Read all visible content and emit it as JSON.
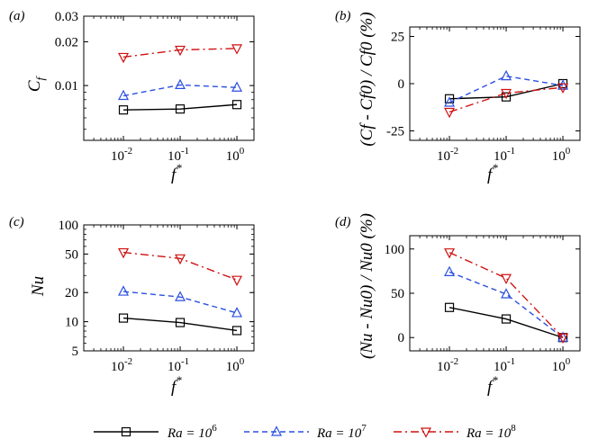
{
  "legend": {
    "entries": [
      {
        "label": "Ra = 10",
        "exp": "6",
        "color": "#000000",
        "dash": "solid",
        "marker": "square"
      },
      {
        "label": "Ra = 10",
        "exp": "7",
        "color": "#2b4fe0",
        "dash": "dashed",
        "marker": "triangle-up"
      },
      {
        "label": "Ra = 10",
        "exp": "8",
        "color": "#d01010",
        "dash": "dashdot",
        "marker": "triangle-down"
      }
    ]
  },
  "chart_data": [
    {
      "panel": "(a)",
      "type": "line",
      "xscale": "log",
      "yscale": "log",
      "xlim": [
        0.002,
        2
      ],
      "ylim": [
        0.0042,
        0.03
      ],
      "x": [
        0.01,
        0.1,
        1
      ],
      "x_ticks": [
        {
          "base": "10",
          "exp": "-2",
          "v": 0.01
        },
        {
          "base": "10",
          "exp": "-1",
          "v": 0.1
        },
        {
          "base": "10",
          "exp": "0",
          "v": 1
        }
      ],
      "y_ticks": [
        {
          "v": 0.01,
          "label": "0.01"
        },
        {
          "v": 0.02,
          "label": "0.02"
        },
        {
          "v": 0.03,
          "label": "0.03"
        }
      ],
      "xlabel": "f",
      "xlabel_sup": "*",
      "ylabel": "C",
      "ylabel_sub": "f",
      "series": [
        {
          "name": "Ra = 10^6",
          "values": [
            0.0068,
            0.0069,
            0.0074
          ]
        },
        {
          "name": "Ra = 10^7",
          "values": [
            0.0085,
            0.0101,
            0.0097
          ]
        },
        {
          "name": "Ra = 10^8",
          "values": [
            0.0157,
            0.0176,
            0.018
          ]
        }
      ]
    },
    {
      "panel": "(b)",
      "type": "line",
      "xscale": "log",
      "yscale": "linear",
      "xlim": [
        0.002,
        2
      ],
      "ylim": [
        -30,
        30
      ],
      "x": [
        0.01,
        0.1,
        1
      ],
      "x_ticks": [
        {
          "base": "10",
          "exp": "-2",
          "v": 0.01
        },
        {
          "base": "10",
          "exp": "-1",
          "v": 0.1
        },
        {
          "base": "10",
          "exp": "0",
          "v": 1
        }
      ],
      "y_ticks": [
        {
          "v": -25,
          "label": "-25"
        },
        {
          "v": 0,
          "label": "0"
        },
        {
          "v": 25,
          "label": "25"
        }
      ],
      "xlabel": "f",
      "xlabel_sup": "*",
      "ylabel": "(Cf - Cf0) / Cf0 (%)",
      "series": [
        {
          "name": "Ra = 10^6",
          "values": [
            -8,
            -7,
            0
          ]
        },
        {
          "name": "Ra = 10^7",
          "values": [
            -10,
            4,
            -1
          ]
        },
        {
          "name": "Ra = 10^8",
          "values": [
            -15,
            -5,
            -2
          ]
        }
      ]
    },
    {
      "panel": "(c)",
      "type": "line",
      "xscale": "log",
      "yscale": "log",
      "xlim": [
        0.002,
        2
      ],
      "ylim": [
        5,
        100
      ],
      "x": [
        0.01,
        0.1,
        1
      ],
      "x_ticks": [
        {
          "base": "10",
          "exp": "-2",
          "v": 0.01
        },
        {
          "base": "10",
          "exp": "-1",
          "v": 0.1
        },
        {
          "base": "10",
          "exp": "0",
          "v": 1
        }
      ],
      "y_ticks": [
        {
          "v": 5,
          "label": "5"
        },
        {
          "v": 10,
          "label": "10"
        },
        {
          "v": 20,
          "label": "20"
        },
        {
          "v": 50,
          "label": "50"
        },
        {
          "v": 100,
          "label": "100"
        }
      ],
      "xlabel": "f",
      "xlabel_sup": "*",
      "ylabel": "Nu",
      "series": [
        {
          "name": "Ra = 10^6",
          "values": [
            10.9,
            9.8,
            8.1
          ]
        },
        {
          "name": "Ra = 10^7",
          "values": [
            20.5,
            18.0,
            12.3
          ]
        },
        {
          "name": "Ra = 10^8",
          "values": [
            52,
            45,
            27
          ]
        }
      ]
    },
    {
      "panel": "(d)",
      "type": "line",
      "xscale": "log",
      "yscale": "linear",
      "xlim": [
        0.002,
        2
      ],
      "ylim": [
        -15,
        115
      ],
      "x": [
        0.01,
        0.1,
        1
      ],
      "x_ticks": [
        {
          "base": "10",
          "exp": "-2",
          "v": 0.01
        },
        {
          "base": "10",
          "exp": "-1",
          "v": 0.1
        },
        {
          "base": "10",
          "exp": "0",
          "v": 1
        }
      ],
      "y_ticks": [
        {
          "v": 0,
          "label": "0"
        },
        {
          "v": 50,
          "label": "50"
        },
        {
          "v": 100,
          "label": "100"
        }
      ],
      "xlabel": "f",
      "xlabel_sup": "*",
      "ylabel": "(Nu - Nu0) / Nu0 (%)",
      "series": [
        {
          "name": "Ra = 10^6",
          "values": [
            34,
            21,
            0
          ]
        },
        {
          "name": "Ra = 10^7",
          "values": [
            74,
            49,
            0
          ]
        },
        {
          "name": "Ra = 10^8",
          "values": [
            96,
            67,
            0
          ]
        }
      ]
    }
  ]
}
